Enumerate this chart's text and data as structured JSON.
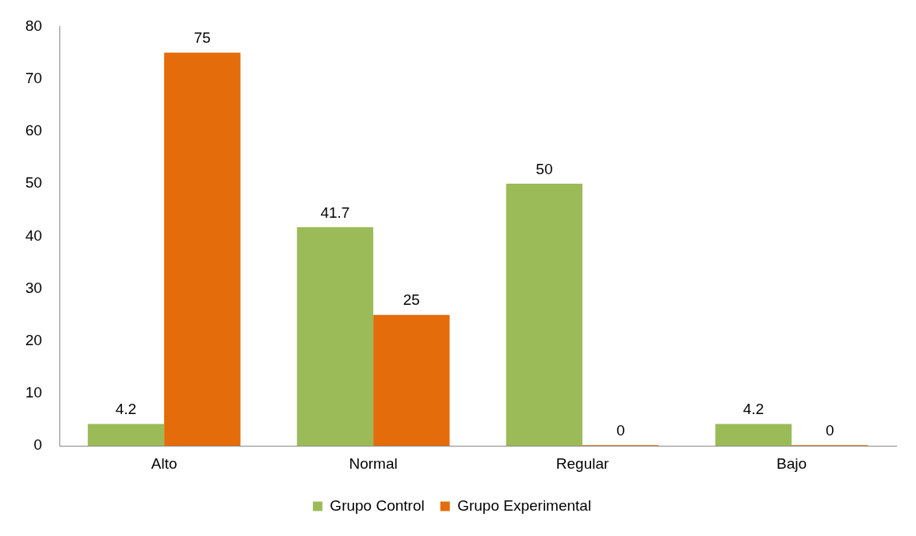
{
  "chart_data": {
    "type": "bar",
    "categories": [
      "Alto",
      "Normal",
      "Regular",
      "Bajo"
    ],
    "series": [
      {
        "name": "Grupo Control",
        "color": "#9bbb59",
        "values": [
          4.2,
          41.7,
          50,
          4.2
        ]
      },
      {
        "name": "Grupo Experimental",
        "color": "#e46c0a",
        "values": [
          75,
          25,
          0,
          0
        ]
      }
    ],
    "ylim": [
      0,
      80
    ],
    "yticks": [
      0,
      10,
      20,
      30,
      40,
      50,
      60,
      70,
      80
    ],
    "grid": false,
    "legend": "bottom",
    "data_labels": true
  }
}
